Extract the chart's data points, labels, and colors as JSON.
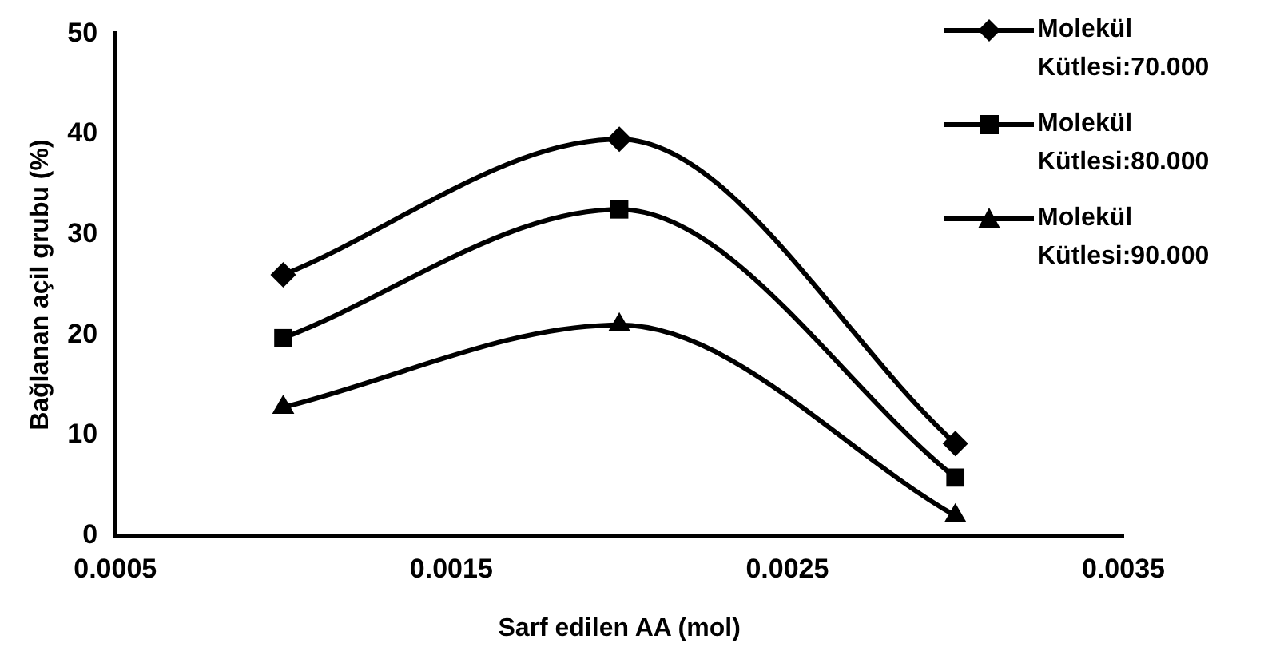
{
  "chart_data": {
    "type": "line",
    "xlabel": "Sarf edilen AA (mol)",
    "ylabel": "Bağlanan açil grubu (%)",
    "x": [
      0.001,
      0.002,
      0.003
    ],
    "series": [
      {
        "name": "Molekül Kütlesi:70.000",
        "color": "#000000",
        "marker": "diamond",
        "values": [
          26,
          39.5,
          9.2
        ]
      },
      {
        "name": "Molekül Kütlesi:80.000",
        "color": "#000000",
        "marker": "square",
        "values": [
          19.7,
          32.5,
          5.8
        ]
      },
      {
        "name": "Molekül Kütlesi:90.000",
        "color": "#000000",
        "marker": "triangle",
        "values": [
          12.8,
          21,
          2
        ]
      }
    ],
    "xlim": [
      0.0005,
      0.0035
    ],
    "xticks": [
      0.0005,
      0.0015,
      0.0025,
      0.0035
    ],
    "ylim": [
      0,
      50
    ],
    "yticks": [
      0,
      10,
      20,
      30,
      40,
      50
    ],
    "grid": false,
    "legend": "top right",
    "line_style": "solid"
  }
}
